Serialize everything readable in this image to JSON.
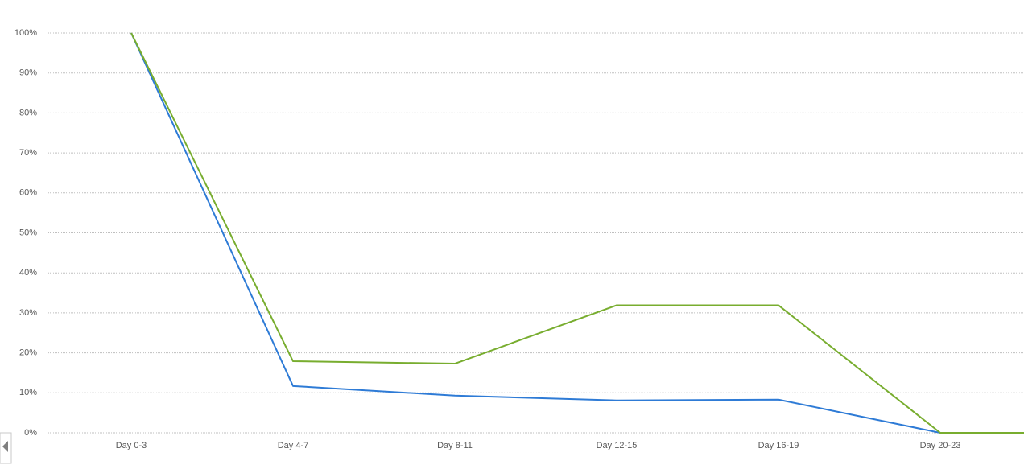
{
  "chart_data": {
    "type": "line",
    "categories": [
      "Day 0-3",
      "Day 4-7",
      "Day 8-11",
      "Day 12-15",
      "Day 16-19",
      "Day 20-23",
      null
    ],
    "series": [
      {
        "color": "#2e7bd6",
        "values": [
          100,
          11.7,
          9.3,
          8.1,
          8.3,
          0,
          null
        ]
      },
      {
        "color": "#78ad2f",
        "values": [
          100,
          17.9,
          17.3,
          31.9,
          31.9,
          0,
          0
        ]
      }
    ],
    "ylim": [
      0,
      100
    ],
    "yticks": [
      {
        "value": 0,
        "label": "0%"
      },
      {
        "value": 10,
        "label": "10%"
      },
      {
        "value": 20,
        "label": "20%"
      },
      {
        "value": 30,
        "label": "30%"
      },
      {
        "value": 40,
        "label": "40%"
      },
      {
        "value": 50,
        "label": "50%"
      },
      {
        "value": 60,
        "label": "60%"
      },
      {
        "value": 70,
        "label": "70%"
      },
      {
        "value": 80,
        "label": "80%"
      },
      {
        "value": 90,
        "label": "90%"
      },
      {
        "value": 100,
        "label": "100%"
      }
    ],
    "grid": true
  }
}
